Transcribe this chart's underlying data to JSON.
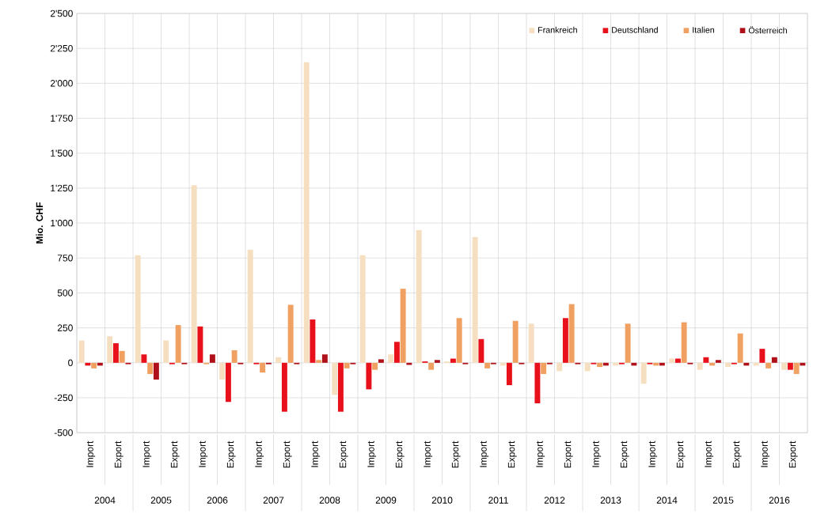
{
  "chart_data": {
    "type": "bar",
    "ylabel": "Mio. CHF",
    "categories": [
      "Import",
      "Export",
      "Import",
      "Export",
      "Import",
      "Export",
      "Import",
      "Export",
      "Import",
      "Export",
      "Import",
      "Export",
      "Import",
      "Export",
      "Import",
      "Export",
      "Import",
      "Export",
      "Import",
      "Export",
      "Import",
      "Export",
      "Import",
      "Export",
      "Import",
      "Export"
    ],
    "annotations": [
      "2004",
      "2005",
      "2006",
      "2007",
      "2008",
      "2009",
      "2010",
      "2011",
      "2012",
      "2013",
      "2014",
      "2015",
      "2016"
    ],
    "series": [
      {
        "name": "Frankreich",
        "color": "#f5dfc0",
        "values": [
          160,
          190,
          770,
          160,
          1270,
          -120,
          810,
          40,
          2150,
          -230,
          770,
          60,
          950,
          10,
          900,
          -20,
          280,
          -60,
          -60,
          -20,
          -150,
          30,
          -50,
          -30,
          -20,
          -50
        ]
      },
      {
        "name": "Deutschland",
        "color": "#e8101a",
        "values": [
          -20,
          140,
          60,
          -10,
          260,
          -280,
          -10,
          -350,
          310,
          -350,
          -190,
          150,
          10,
          30,
          170,
          -160,
          -290,
          320,
          -10,
          -10,
          -10,
          30,
          40,
          -10,
          100,
          -50
        ]
      },
      {
        "name": "Italien",
        "color": "#f0a060",
        "values": [
          -40,
          85,
          -80,
          270,
          -10,
          90,
          -70,
          415,
          20,
          -40,
          -50,
          530,
          -50,
          320,
          -40,
          300,
          -80,
          420,
          -30,
          280,
          -20,
          290,
          -20,
          210,
          -40,
          -80
        ]
      },
      {
        "name": "Österreich",
        "color": "#b0101a",
        "values": [
          -20,
          -10,
          -120,
          -10,
          60,
          -10,
          -10,
          -10,
          60,
          -10,
          25,
          -15,
          20,
          -10,
          -10,
          -10,
          -10,
          -10,
          -20,
          -20,
          -20,
          -10,
          20,
          -20,
          40,
          -20
        ]
      }
    ],
    "ylim": [
      -500,
      2500
    ],
    "yticks": [
      {
        "value": -500,
        "label": "-500"
      },
      {
        "value": -250,
        "label": "-250"
      },
      {
        "value": 0,
        "label": "0"
      },
      {
        "value": 250,
        "label": "250"
      },
      {
        "value": 500,
        "label": "500"
      },
      {
        "value": 750,
        "label": "750"
      },
      {
        "value": 1000,
        "label": "1'000"
      },
      {
        "value": 1250,
        "label": "1'250"
      },
      {
        "value": 1500,
        "label": "1'500"
      },
      {
        "value": 1750,
        "label": "1'750"
      },
      {
        "value": 2000,
        "label": "2'000"
      },
      {
        "value": 2250,
        "label": "2'250"
      },
      {
        "value": 2500,
        "label": "2'500"
      }
    ],
    "grid": true,
    "legend": "top right"
  }
}
